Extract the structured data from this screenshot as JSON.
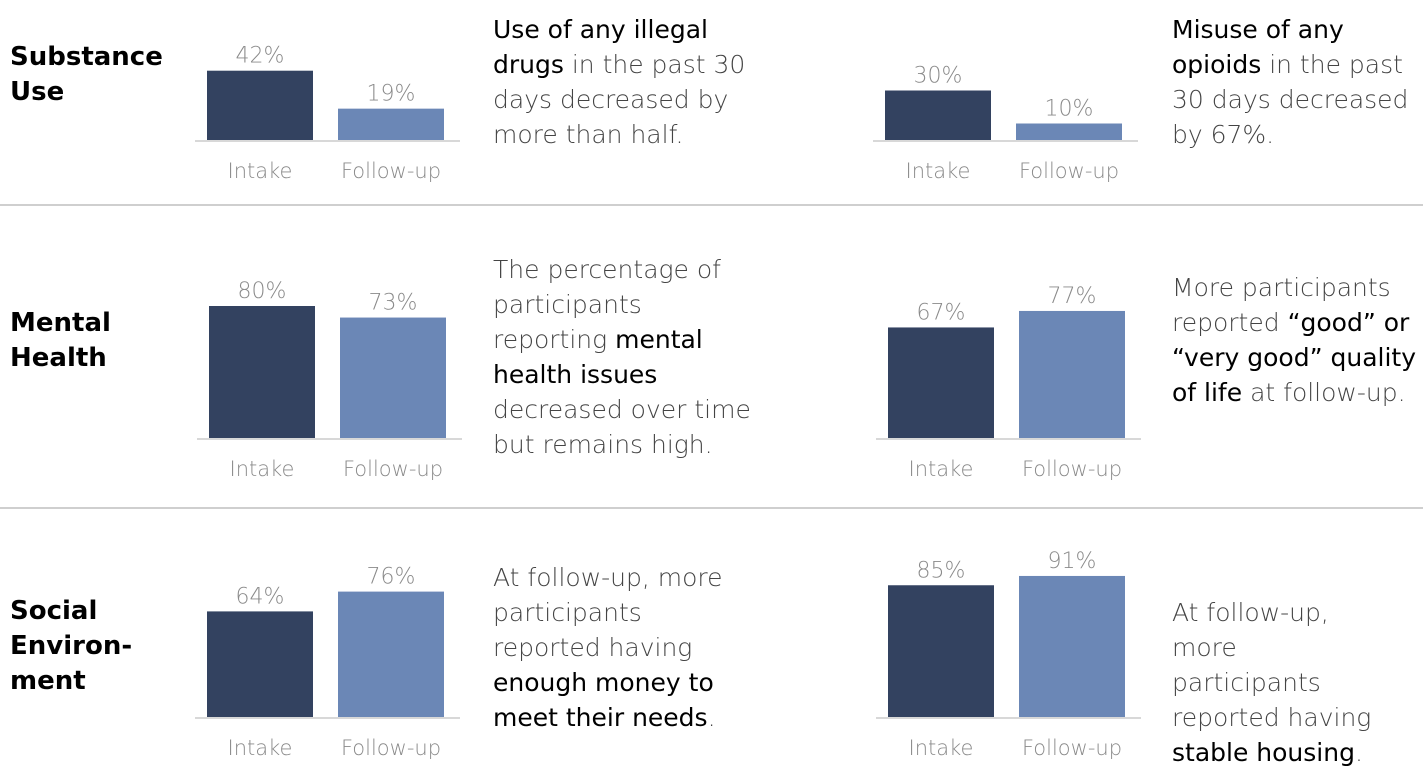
{
  "colors": {
    "intake": "#334260",
    "followup": "#6b87b6",
    "axis": "#d8d8d8",
    "label": "#8a8a8a",
    "divider": "#cfcfcf"
  },
  "sections": [
    {
      "label": "Substance\nUse",
      "panels": [
        {
          "parts": [
            {
              "t": "Use of any illegal drugs",
              "hl": true
            },
            {
              "t": " in the past 30 days decreased by more than half."
            }
          ]
        },
        {
          "parts": [
            {
              "t": "Misuse of any opioids",
              "hl": true
            },
            {
              "t": " in the past 30 days decreased by 67%."
            }
          ]
        }
      ]
    },
    {
      "label": "Mental\nHealth",
      "panels": [
        {
          "parts": [
            {
              "t": "The percentage of participants reporting "
            },
            {
              "t": "mental health issues",
              "hl": true
            },
            {
              "t": " decreased over time but remains high."
            }
          ]
        },
        {
          "parts": [
            {
              "t": "More participants reported "
            },
            {
              "t": "“good” or “very good” quality of life",
              "hl": true
            },
            {
              "t": " at follow-up."
            }
          ]
        }
      ]
    },
    {
      "label": "Social\nEnviron-\nment",
      "panels": [
        {
          "parts": [
            {
              "t": "At follow-up, more participants reported having "
            },
            {
              "t": "enough money to meet their needs",
              "hl": true
            },
            {
              "t": "."
            }
          ]
        },
        {
          "parts": [
            {
              "t": "At follow-up, more participants reported having "
            },
            {
              "t": "stable housing",
              "hl": true
            },
            {
              "t": "."
            }
          ]
        }
      ]
    }
  ],
  "chart_data": [
    {
      "type": "bar",
      "categories": [
        "Intake",
        "Follow-up"
      ],
      "values": [
        42,
        19
      ],
      "labels": [
        "42%",
        "19%"
      ],
      "ylim": [
        0,
        100
      ]
    },
    {
      "type": "bar",
      "categories": [
        "Intake",
        "Follow-up"
      ],
      "values": [
        30,
        10
      ],
      "labels": [
        "30%",
        "10%"
      ],
      "ylim": [
        0,
        100
      ]
    },
    {
      "type": "bar",
      "categories": [
        "Intake",
        "Follow-up"
      ],
      "values": [
        80,
        73
      ],
      "labels": [
        "80%",
        "73%"
      ],
      "ylim": [
        0,
        100
      ]
    },
    {
      "type": "bar",
      "categories": [
        "Intake",
        "Follow-up"
      ],
      "values": [
        67,
        77
      ],
      "labels": [
        "67%",
        "77%"
      ],
      "ylim": [
        0,
        100
      ]
    },
    {
      "type": "bar",
      "categories": [
        "Intake",
        "Follow-up"
      ],
      "values": [
        64,
        76
      ],
      "labels": [
        "64%",
        "76%"
      ],
      "ylim": [
        0,
        100
      ]
    },
    {
      "type": "bar",
      "categories": [
        "Intake",
        "Follow-up"
      ],
      "values": [
        85,
        91
      ],
      "labels": [
        "85%",
        "91%"
      ],
      "ylim": [
        0,
        100
      ]
    }
  ]
}
